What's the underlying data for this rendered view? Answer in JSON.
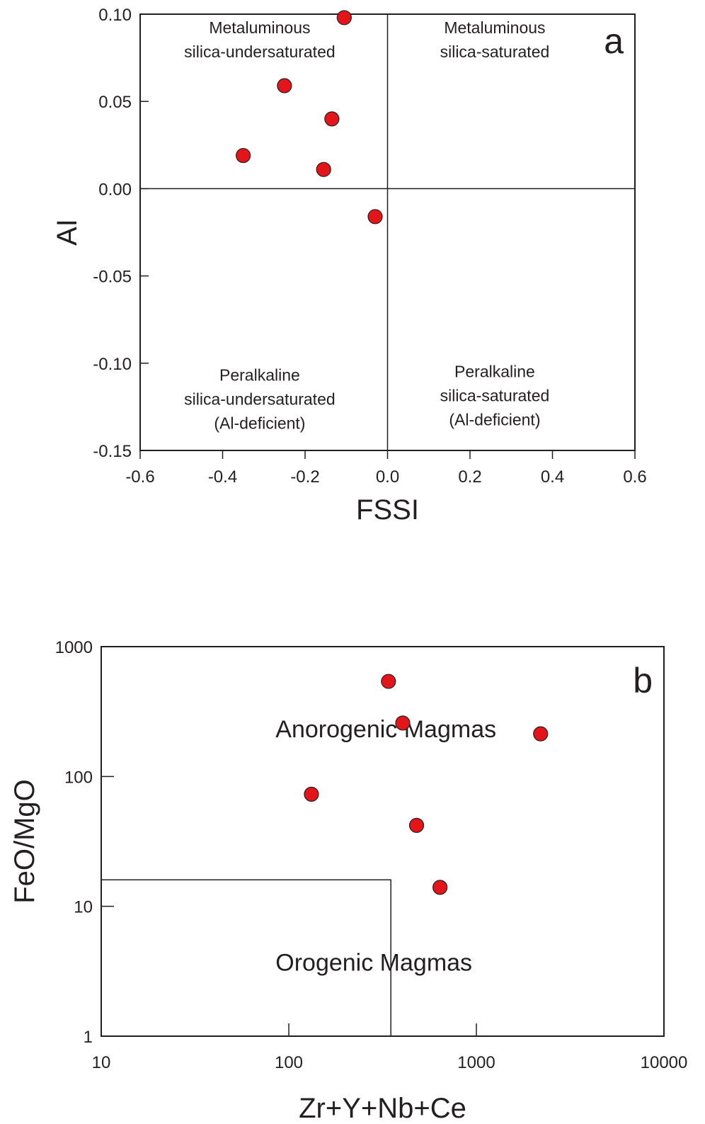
{
  "colors": {
    "point": "#e3151b",
    "ink": "#231f20"
  },
  "chart_data": [
    {
      "type": "scatter",
      "panel": "a",
      "xlabel": "FSSI",
      "ylabel": "AI",
      "xlim": [
        -0.6,
        0.6
      ],
      "ylim": [
        -0.15,
        0.1
      ],
      "x_ticks": [
        -0.6,
        -0.4,
        -0.2,
        0.0,
        0.2,
        0.4,
        0.6
      ],
      "x_tick_labels": [
        "-0.6",
        "-0.4",
        "-0.2",
        "0.0",
        "0.2",
        "0.4",
        "0.6"
      ],
      "y_ticks": [
        0.1,
        0.05,
        0.0,
        -0.05,
        -0.1,
        -0.15
      ],
      "y_tick_labels": [
        "0.10",
        "0.05",
        "0.00",
        "-0.05",
        "-0.10",
        "-0.15"
      ],
      "grid": false,
      "divider_lines": {
        "x": 0.0,
        "y": 0.0
      },
      "points": [
        {
          "x": -0.105,
          "y": 0.098
        },
        {
          "x": -0.25,
          "y": 0.059
        },
        {
          "x": -0.135,
          "y": 0.04
        },
        {
          "x": -0.35,
          "y": 0.019
        },
        {
          "x": -0.155,
          "y": 0.011
        },
        {
          "x": -0.03,
          "y": -0.016
        }
      ],
      "region_labels": [
        {
          "lines": [
            "Metaluminous",
            "silica-undersaturated"
          ],
          "x": -0.31,
          "y": 0.089
        },
        {
          "lines": [
            "Metaluminous",
            "silica-saturated"
          ],
          "x": 0.26,
          "y": 0.089
        },
        {
          "lines": [
            "Peralkaline",
            "silica-undersaturated",
            "(Al-deficient)"
          ],
          "x": -0.31,
          "y": -0.11
        },
        {
          "lines": [
            "Peralkaline",
            "silica-saturated",
            "(Al-deficient)"
          ],
          "x": 0.26,
          "y": -0.108
        }
      ]
    },
    {
      "type": "scatter",
      "panel": "b",
      "xlabel": "Zr+Y+Nb+Ce",
      "ylabel": "FeO/MgO",
      "xscale": "log",
      "yscale": "log",
      "xlim": [
        10,
        10000
      ],
      "ylim": [
        1,
        1000
      ],
      "x_ticks": [
        10,
        100,
        1000,
        10000
      ],
      "x_tick_labels": [
        "10",
        "100",
        "1000",
        "10000"
      ],
      "y_ticks": [
        1000,
        100,
        10,
        1
      ],
      "y_tick_labels": [
        "1000",
        "100",
        "10",
        "1"
      ],
      "grid": false,
      "orogenic_field": {
        "x_max": 350,
        "y_max": 16
      },
      "points": [
        {
          "x": 340,
          "y": 540
        },
        {
          "x": 405,
          "y": 258
        },
        {
          "x": 2200,
          "y": 213
        },
        {
          "x": 132,
          "y": 73
        },
        {
          "x": 480,
          "y": 42
        },
        {
          "x": 640,
          "y": 14
        }
      ],
      "region_labels": [
        {
          "lines": [
            "Anorogenic Magmas"
          ],
          "x": 85,
          "y": 200
        },
        {
          "lines": [
            "Orogenic Magmas"
          ],
          "x": 85,
          "y": 3.2
        }
      ]
    }
  ]
}
